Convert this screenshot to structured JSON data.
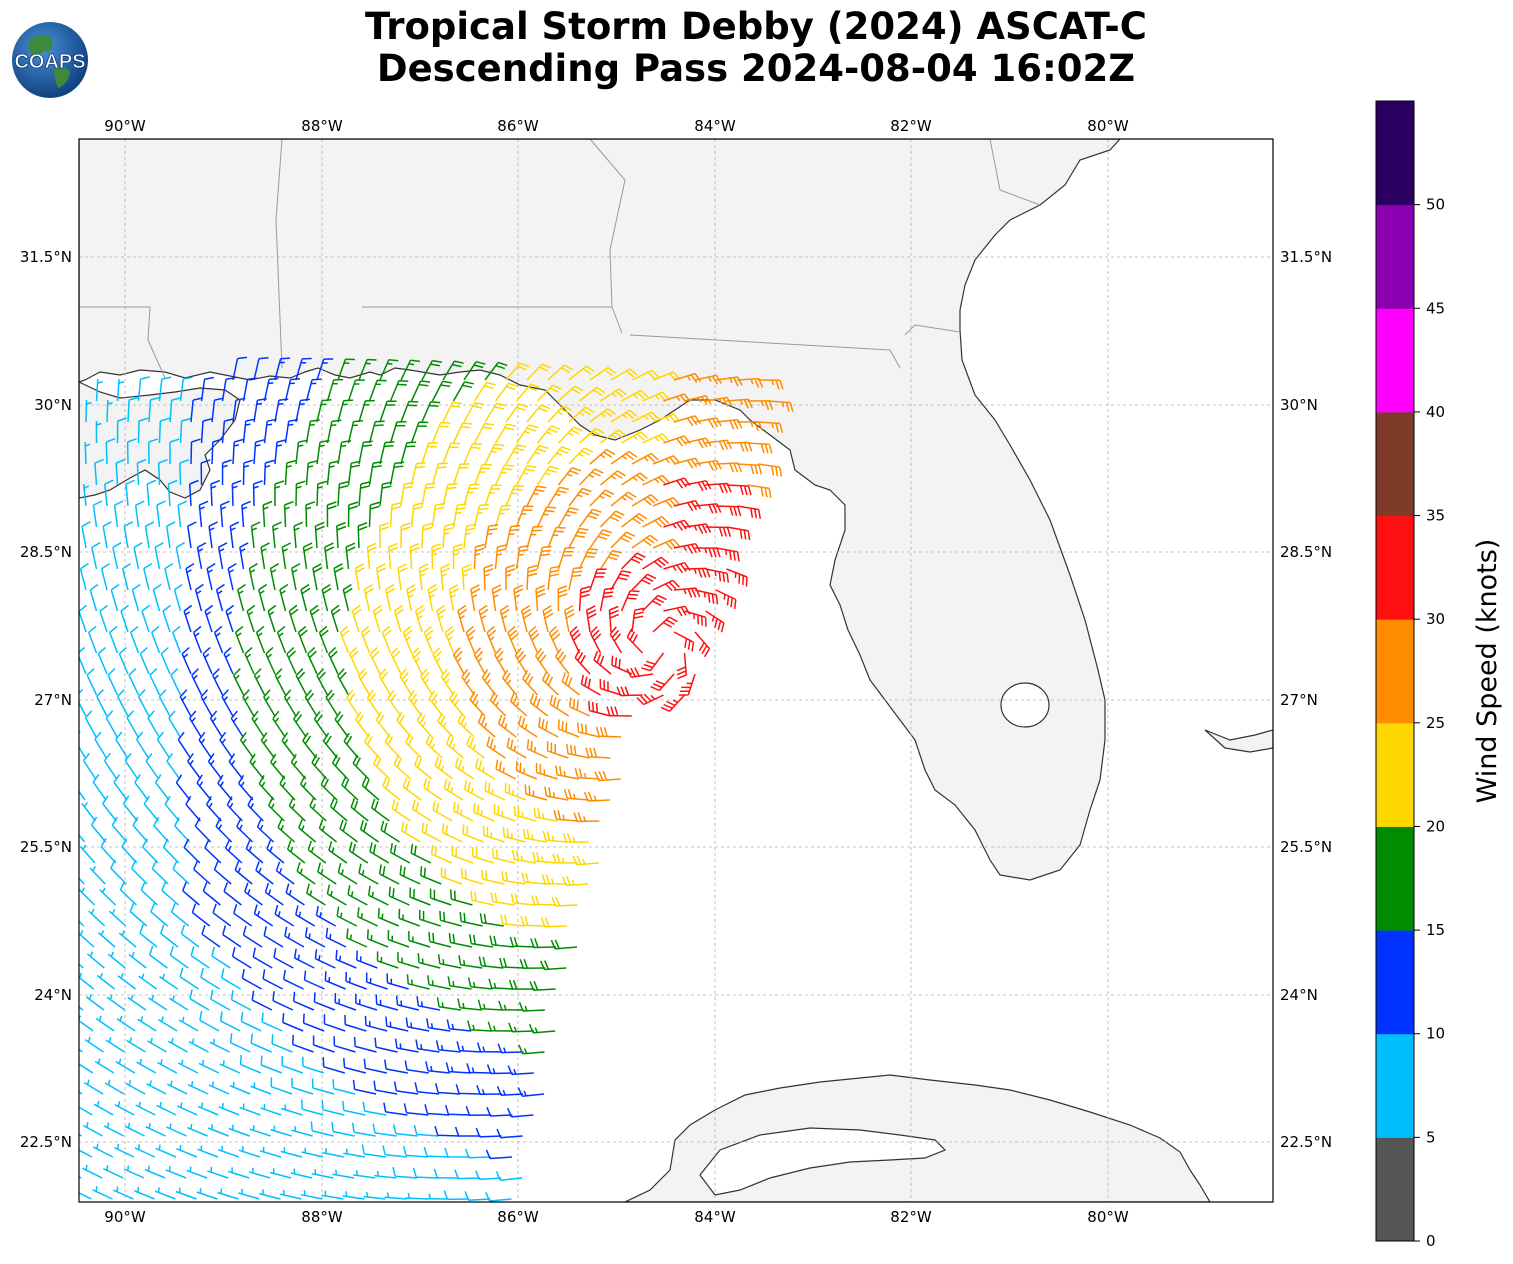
{
  "title": {
    "line1": "Tropical Storm Debby (2024) ASCAT-C",
    "line2": "Descending Pass 2024-08-04 16:02Z"
  },
  "logo": {
    "text": "COAPS"
  },
  "map": {
    "lon_range": [
      -90.5,
      -78.35
    ],
    "lat_range": [
      21.95,
      32.75
    ],
    "lon_ticks": [
      "90°W",
      "88°W",
      "86°W",
      "84°W",
      "82°W",
      "80°W"
    ],
    "lat_ticks": [
      "31.5°N",
      "30°N",
      "28.5°N",
      "27°N",
      "25.5°N",
      "24°N",
      "22.5°N"
    ],
    "storm_center": {
      "lon": -84.6,
      "lat": 27.6
    },
    "colors": {
      "land": "#f3f3f3",
      "coast": "#333333",
      "border": "#999999",
      "grid": "#b0b0b0"
    }
  },
  "colorbar": {
    "label": "Wind Speed (knots)",
    "ticks": [
      "0",
      "5",
      "10",
      "15",
      "20",
      "25",
      "30",
      "35",
      "40",
      "45",
      "50"
    ],
    "bins": [
      {
        "min": 0,
        "max": 5,
        "color": "#555555"
      },
      {
        "min": 5,
        "max": 10,
        "color": "#00bfff"
      },
      {
        "min": 10,
        "max": 15,
        "color": "#0033ff"
      },
      {
        "min": 15,
        "max": 20,
        "color": "#008c00"
      },
      {
        "min": 20,
        "max": 25,
        "color": "#ffd700"
      },
      {
        "min": 25,
        "max": 30,
        "color": "#ff8c00"
      },
      {
        "min": 30,
        "max": 35,
        "color": "#ff1010"
      },
      {
        "min": 35,
        "max": 40,
        "color": "#7f3b2a"
      },
      {
        "min": 40,
        "max": 45,
        "color": "#ff00ff"
      },
      {
        "min": 45,
        "max": 50,
        "color": "#8b00b0"
      },
      {
        "min": 50,
        "max": 55,
        "color": "#2a0060"
      }
    ]
  }
}
